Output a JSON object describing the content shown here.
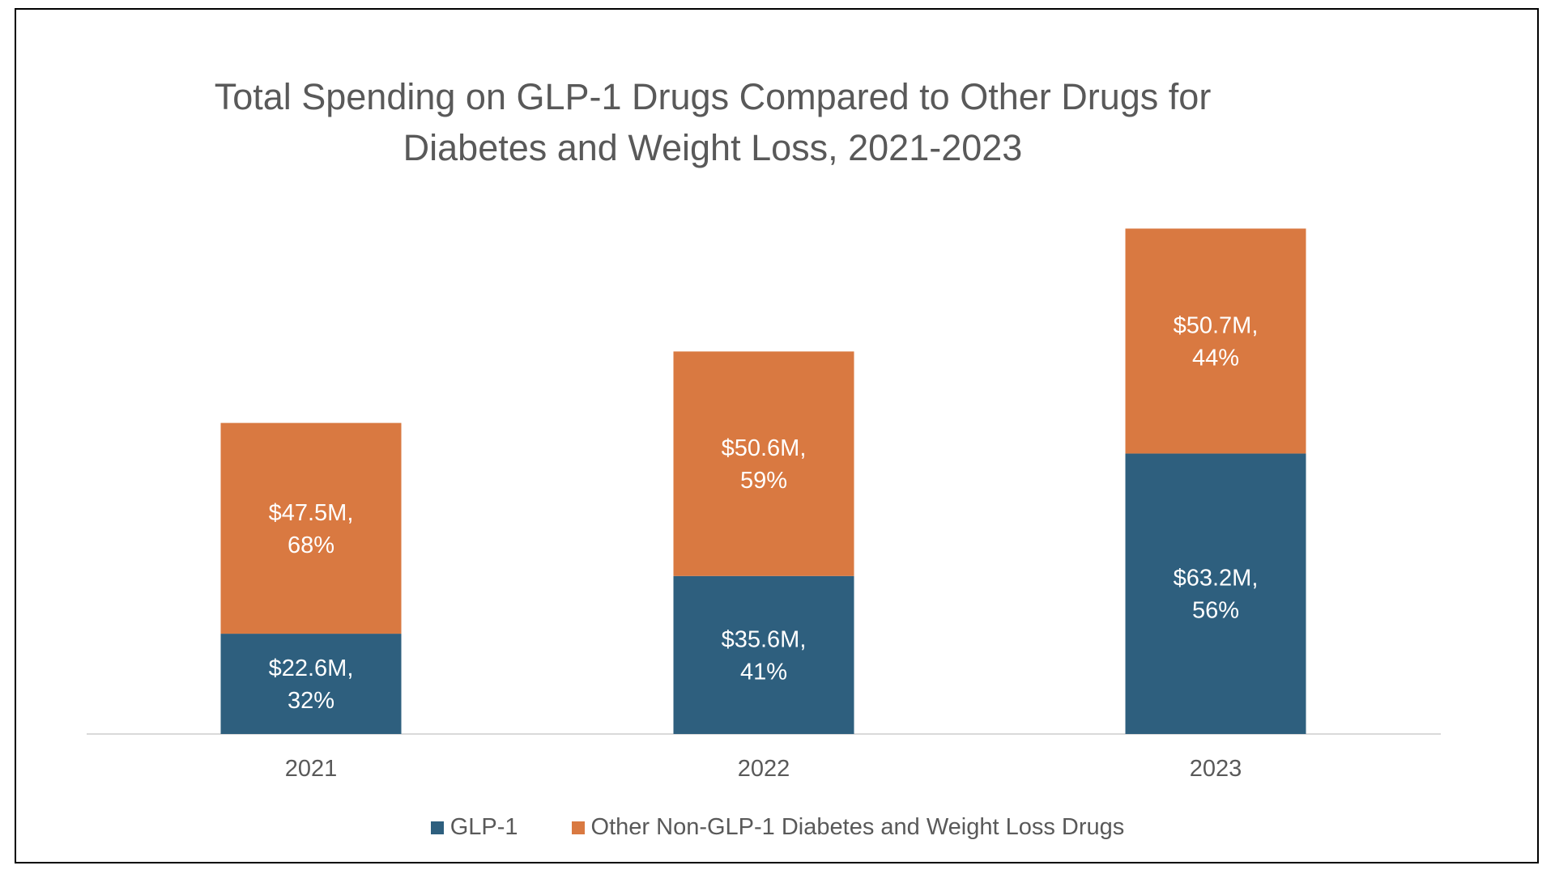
{
  "chart_data": {
    "type": "bar",
    "stacked": true,
    "title": "Total Spending on GLP-1 Drugs Compared to Other Drugs for Diabetes and Weight Loss, 2021-2023",
    "title_lines": [
      "Total Spending on GLP-1 Drugs Compared to Other Drugs for",
      "Diabetes and Weight Loss, 2021-2023"
    ],
    "categories": [
      "2021",
      "2022",
      "2023"
    ],
    "series": [
      {
        "name": "GLP-1",
        "color": "#2E5F7E",
        "values": [
          22.6,
          35.6,
          63.2
        ],
        "labels": [
          "$22.6M,|32%",
          "$35.6M,|41%",
          "$63.2M,|56%"
        ]
      },
      {
        "name": "Other Non-GLP-1 Diabetes and Weight Loss Drugs",
        "color": "#D97941",
        "values": [
          47.5,
          50.6,
          50.7
        ],
        "labels": [
          "$47.5M,|68%",
          "$50.6M,|59%",
          "$50.7M,|44%"
        ]
      }
    ],
    "ylim": [
      0,
      120
    ],
    "grid": false,
    "legend_position": "bottom"
  }
}
